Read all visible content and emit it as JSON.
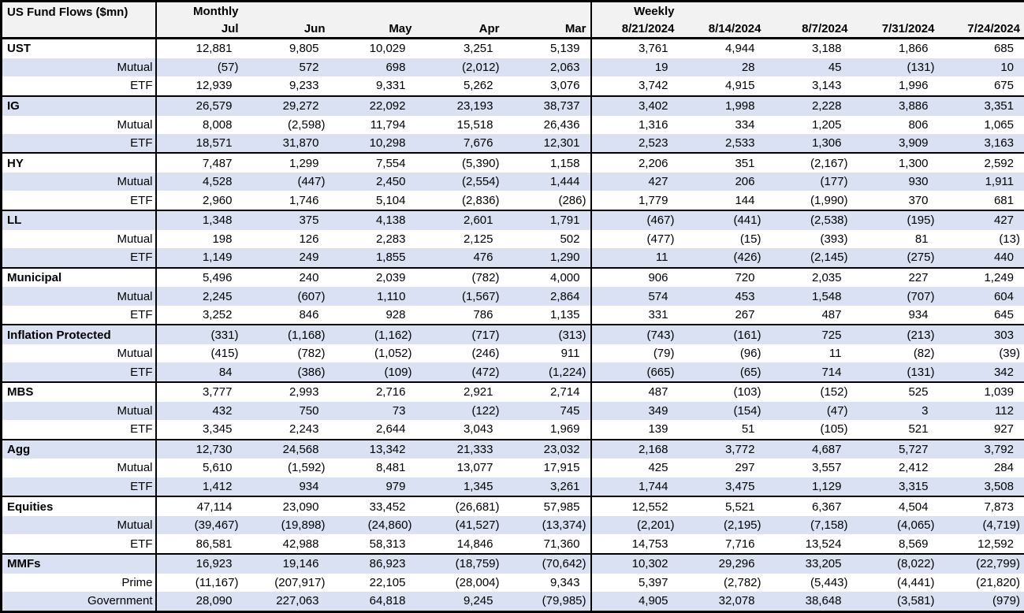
{
  "title": "US Fund Flows ($mn)",
  "colors": {
    "band_fill": "#d9e1f2",
    "header_fill": "#f2f2f2",
    "border": "#000000",
    "text": "#000000"
  },
  "chart_data": {
    "type": "table",
    "title": "US Fund Flows ($mn)",
    "column_groups": [
      "Monthly",
      "Weekly"
    ],
    "columns": [
      "Jul",
      "Jun",
      "May",
      "Apr",
      "Mar",
      "8/21/2024",
      "8/14/2024",
      "8/7/2024",
      "7/31/2024",
      "7/24/2024"
    ],
    "note_negative_format": "parentheses denote negative values",
    "rows": [
      {
        "label": "UST",
        "level": "group",
        "values": [
          "12,881",
          "9,805",
          "10,029",
          "3,251",
          "5,139",
          "3,761",
          "4,944",
          "3,188",
          "1,866",
          "685"
        ]
      },
      {
        "label": "Mutual",
        "level": "sub",
        "values": [
          "(57)",
          "572",
          "698",
          "(2,012)",
          "2,063",
          "19",
          "28",
          "45",
          "(131)",
          "10"
        ]
      },
      {
        "label": "ETF",
        "level": "sub",
        "values": [
          "12,939",
          "9,233",
          "9,331",
          "5,262",
          "3,076",
          "3,742",
          "4,915",
          "3,143",
          "1,996",
          "675"
        ]
      },
      {
        "label": "IG",
        "level": "group",
        "values": [
          "26,579",
          "29,272",
          "22,092",
          "23,193",
          "38,737",
          "3,402",
          "1,998",
          "2,228",
          "3,886",
          "3,351"
        ]
      },
      {
        "label": "Mutual",
        "level": "sub",
        "values": [
          "8,008",
          "(2,598)",
          "11,794",
          "15,518",
          "26,436",
          "1,316",
          "334",
          "1,205",
          "806",
          "1,065"
        ]
      },
      {
        "label": "ETF",
        "level": "sub",
        "values": [
          "18,571",
          "31,870",
          "10,298",
          "7,676",
          "12,301",
          "2,523",
          "2,533",
          "1,306",
          "3,909",
          "3,163"
        ]
      },
      {
        "label": "HY",
        "level": "group",
        "values": [
          "7,487",
          "1,299",
          "7,554",
          "(5,390)",
          "1,158",
          "2,206",
          "351",
          "(2,167)",
          "1,300",
          "2,592"
        ]
      },
      {
        "label": "Mutual",
        "level": "sub",
        "values": [
          "4,528",
          "(447)",
          "2,450",
          "(2,554)",
          "1,444",
          "427",
          "206",
          "(177)",
          "930",
          "1,911"
        ]
      },
      {
        "label": "ETF",
        "level": "sub",
        "values": [
          "2,960",
          "1,746",
          "5,104",
          "(2,836)",
          "(286)",
          "1,779",
          "144",
          "(1,990)",
          "370",
          "681"
        ]
      },
      {
        "label": "LL",
        "level": "group",
        "values": [
          "1,348",
          "375",
          "4,138",
          "2,601",
          "1,791",
          "(467)",
          "(441)",
          "(2,538)",
          "(195)",
          "427"
        ]
      },
      {
        "label": "Mutual",
        "level": "sub",
        "values": [
          "198",
          "126",
          "2,283",
          "2,125",
          "502",
          "(477)",
          "(15)",
          "(393)",
          "81",
          "(13)"
        ]
      },
      {
        "label": "ETF",
        "level": "sub",
        "values": [
          "1,149",
          "249",
          "1,855",
          "476",
          "1,290",
          "11",
          "(426)",
          "(2,145)",
          "(275)",
          "440"
        ]
      },
      {
        "label": "Municipal",
        "level": "group",
        "values": [
          "5,496",
          "240",
          "2,039",
          "(782)",
          "4,000",
          "906",
          "720",
          "2,035",
          "227",
          "1,249"
        ]
      },
      {
        "label": "Mutual",
        "level": "sub",
        "values": [
          "2,245",
          "(607)",
          "1,110",
          "(1,567)",
          "2,864",
          "574",
          "453",
          "1,548",
          "(707)",
          "604"
        ]
      },
      {
        "label": "ETF",
        "level": "sub",
        "values": [
          "3,252",
          "846",
          "928",
          "786",
          "1,135",
          "331",
          "267",
          "487",
          "934",
          "645"
        ]
      },
      {
        "label": "Inflation Protected",
        "level": "group",
        "values": [
          "(331)",
          "(1,168)",
          "(1,162)",
          "(717)",
          "(313)",
          "(743)",
          "(161)",
          "725",
          "(213)",
          "303"
        ]
      },
      {
        "label": "Mutual",
        "level": "sub",
        "values": [
          "(415)",
          "(782)",
          "(1,052)",
          "(246)",
          "911",
          "(79)",
          "(96)",
          "11",
          "(82)",
          "(39)"
        ]
      },
      {
        "label": "ETF",
        "level": "sub",
        "values": [
          "84",
          "(386)",
          "(109)",
          "(472)",
          "(1,224)",
          "(665)",
          "(65)",
          "714",
          "(131)",
          "342"
        ]
      },
      {
        "label": "MBS",
        "level": "group",
        "values": [
          "3,777",
          "2,993",
          "2,716",
          "2,921",
          "2,714",
          "487",
          "(103)",
          "(152)",
          "525",
          "1,039"
        ]
      },
      {
        "label": "Mutual",
        "level": "sub",
        "values": [
          "432",
          "750",
          "73",
          "(122)",
          "745",
          "349",
          "(154)",
          "(47)",
          "3",
          "112"
        ]
      },
      {
        "label": "ETF",
        "level": "sub",
        "values": [
          "3,345",
          "2,243",
          "2,644",
          "3,043",
          "1,969",
          "139",
          "51",
          "(105)",
          "521",
          "927"
        ]
      },
      {
        "label": "Agg",
        "level": "group",
        "values": [
          "12,730",
          "24,568",
          "13,342",
          "21,333",
          "23,032",
          "2,168",
          "3,772",
          "4,687",
          "5,727",
          "3,792"
        ]
      },
      {
        "label": "Mutual",
        "level": "sub",
        "values": [
          "5,610",
          "(1,592)",
          "8,481",
          "13,077",
          "17,915",
          "425",
          "297",
          "3,557",
          "2,412",
          "284"
        ]
      },
      {
        "label": "ETF",
        "level": "sub",
        "values": [
          "1,412",
          "934",
          "979",
          "1,345",
          "3,261",
          "1,744",
          "3,475",
          "1,129",
          "3,315",
          "3,508"
        ]
      },
      {
        "label": "Equities",
        "level": "group",
        "values": [
          "47,114",
          "23,090",
          "33,452",
          "(26,681)",
          "57,985",
          "12,552",
          "5,521",
          "6,367",
          "4,504",
          "7,873"
        ]
      },
      {
        "label": "Mutual",
        "level": "sub",
        "values": [
          "(39,467)",
          "(19,898)",
          "(24,860)",
          "(41,527)",
          "(13,374)",
          "(2,201)",
          "(2,195)",
          "(7,158)",
          "(4,065)",
          "(4,719)"
        ]
      },
      {
        "label": "ETF",
        "level": "sub",
        "values": [
          "86,581",
          "42,988",
          "58,313",
          "14,846",
          "71,360",
          "14,753",
          "7,716",
          "13,524",
          "8,569",
          "12,592"
        ]
      },
      {
        "label": "MMFs",
        "level": "group",
        "values": [
          "16,923",
          "19,146",
          "86,923",
          "(18,759)",
          "(70,642)",
          "10,302",
          "29,296",
          "33,205",
          "(8,022)",
          "(22,799)"
        ]
      },
      {
        "label": "Prime",
        "level": "sub",
        "values": [
          "(11,167)",
          "(207,917)",
          "22,105",
          "(28,004)",
          "9,343",
          "5,397",
          "(2,782)",
          "(5,443)",
          "(4,441)",
          "(21,820)"
        ]
      },
      {
        "label": "Government",
        "level": "sub",
        "values": [
          "28,090",
          "227,063",
          "64,818",
          "9,245",
          "(79,985)",
          "4,905",
          "32,078",
          "38,648",
          "(3,581)",
          "(979)"
        ]
      }
    ]
  }
}
